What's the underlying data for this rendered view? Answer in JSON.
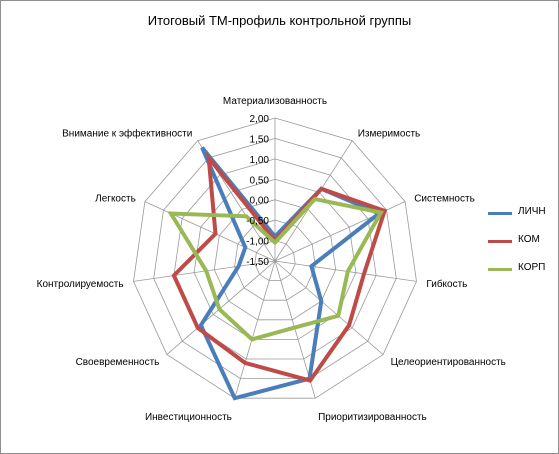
{
  "chart_data": {
    "type": "radar",
    "title": "Итоговый ТМ-профиль контрольной группы",
    "categories": [
      "Материализованность",
      "Измеримость",
      "Системность",
      "Гибкость",
      "Целеориентированность",
      "Приоритизированность",
      "Инвестиционность",
      "Своевременность",
      "Контролируемость",
      "Легкость",
      "Внимание к эффективности"
    ],
    "rlim": [
      -1.5,
      2.0
    ],
    "ticks": [
      "-1,50",
      "-1,00",
      "-0,50",
      "0,00",
      "0,50",
      "1,00",
      "1,50",
      "2,00"
    ],
    "tick_values": [
      -1.5,
      -1.0,
      -0.5,
      0.0,
      0.5,
      1.0,
      1.5,
      2.0
    ],
    "grid": true,
    "legend_position": "right",
    "series": [
      {
        "name": "ЛИЧН",
        "color": "#4a7ebb",
        "values": [
          -0.9,
          0.6,
          1.3,
          -0.6,
          0.0,
          1.5,
          2.0,
          0.9,
          -0.6,
          -0.7,
          1.8
        ]
      },
      {
        "name": "КОМ",
        "color": "#be4b48",
        "values": [
          -1.0,
          0.6,
          1.45,
          0.7,
          0.9,
          1.55,
          1.1,
          1.0,
          1.0,
          0.1,
          1.5
        ]
      },
      {
        "name": "КОРП",
        "color": "#98b954",
        "values": [
          -1.05,
          0.3,
          1.35,
          0.3,
          0.55,
          0.2,
          0.5,
          0.3,
          0.2,
          1.3,
          -0.2
        ]
      }
    ]
  }
}
